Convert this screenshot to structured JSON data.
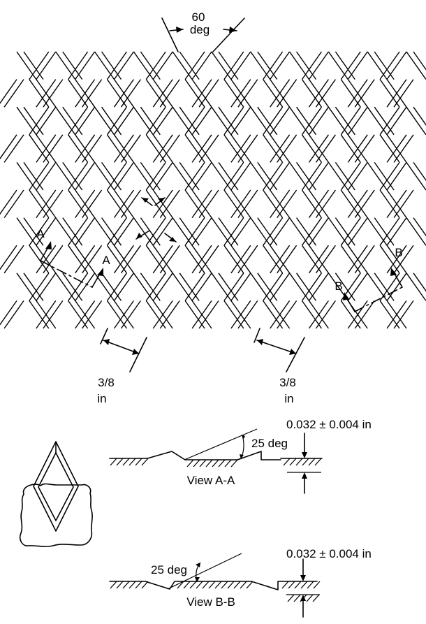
{
  "figure": {
    "title_angle": {
      "value": "60",
      "unit": "deg"
    },
    "pitch_left": {
      "value": "3/8",
      "unit": "in"
    },
    "pitch_right": {
      "value": "3/8",
      "unit": "in"
    },
    "section_a_label": "A",
    "section_b_label": "B"
  },
  "view_a": {
    "caption": "View A-A",
    "angle": "25 deg",
    "thickness": "0.032 ± 0.004 in"
  },
  "view_b": {
    "caption": "View B-B",
    "angle": "25 deg",
    "thickness": "0.032 ± 0.004 in"
  },
  "mesh": {
    "columns": 10,
    "rows": 5,
    "strand_angle_deg": 60
  }
}
